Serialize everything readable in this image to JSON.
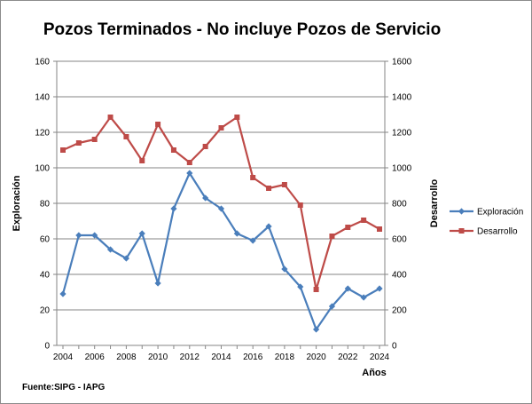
{
  "chart_data": {
    "type": "line",
    "title": "Pozos Terminados - No incluye Pozos de Servicio",
    "xlabel": "Años",
    "ylabel": "Exploración",
    "y2label": "Desarrollo",
    "source": "Fuente:SIPG - IAPG",
    "x": [
      2004,
      2005,
      2006,
      2007,
      2008,
      2009,
      2010,
      2011,
      2012,
      2013,
      2014,
      2015,
      2016,
      2017,
      2018,
      2019,
      2020,
      2021,
      2022,
      2023,
      2024
    ],
    "xticks": [
      "2004",
      "2006",
      "2008",
      "2010",
      "2012",
      "2014",
      "2016",
      "2018",
      "2020",
      "2022",
      "2024"
    ],
    "ylim": [
      0,
      160
    ],
    "yticks": [
      "0",
      "20",
      "40",
      "60",
      "80",
      "100",
      "120",
      "140",
      "160"
    ],
    "y2lim": [
      0,
      1600
    ],
    "y2ticks": [
      "0",
      "200",
      "400",
      "600",
      "800",
      "1000",
      "1200",
      "1400",
      "1600"
    ],
    "grid": "horizontal",
    "legend_position": "right",
    "series": [
      {
        "name": "Exploración",
        "axis": "left",
        "color": "#4a7ebb",
        "marker": "diamond",
        "values": [
          29,
          62,
          62,
          54,
          49,
          63,
          35,
          77,
          97,
          83,
          77,
          63,
          59,
          67,
          43,
          33,
          9,
          22,
          32,
          27,
          32
        ]
      },
      {
        "name": "Desarrollo",
        "axis": "right",
        "color": "#be4b48",
        "marker": "square",
        "values": [
          1100,
          1140,
          1160,
          1285,
          1175,
          1040,
          1245,
          1100,
          1030,
          1120,
          1225,
          1285,
          945,
          885,
          905,
          790,
          315,
          615,
          665,
          705,
          655
        ]
      }
    ]
  }
}
